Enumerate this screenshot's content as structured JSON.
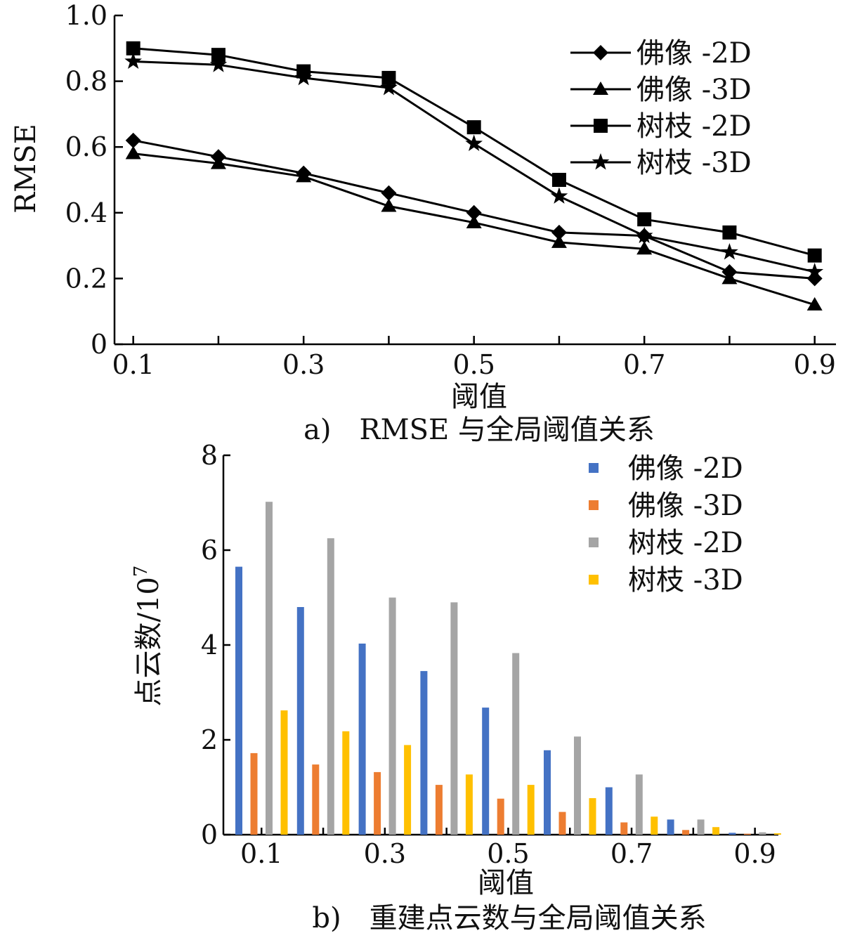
{
  "chart_data": [
    {
      "type": "line",
      "caption": "a)　RMSE 与全局阈值关系",
      "xlabel": "阈值",
      "ylabel": "RMSE",
      "x": [
        0.1,
        0.2,
        0.3,
        0.4,
        0.5,
        0.6,
        0.7,
        0.8,
        0.9
      ],
      "x_tick_labels": [
        "0.1",
        "0.3",
        "0.5",
        "0.7",
        "0.9"
      ],
      "y_tick_labels": [
        "0",
        "0.2",
        "0.4",
        "0.6",
        "0.8",
        "1.0"
      ],
      "xlim": [
        0.078,
        0.925
      ],
      "ylim": [
        0,
        1.0
      ],
      "legend_position": "top-right",
      "series": [
        {
          "name": "佛像 -2D",
          "marker": "diamond",
          "values": [
            0.62,
            0.57,
            0.52,
            0.46,
            0.4,
            0.34,
            0.33,
            0.22,
            0.2
          ]
        },
        {
          "name": "佛像 -3D",
          "marker": "triangle",
          "values": [
            0.58,
            0.55,
            0.51,
            0.42,
            0.37,
            0.31,
            0.29,
            0.2,
            0.12
          ]
        },
        {
          "name": "树枝 -2D",
          "marker": "square",
          "values": [
            0.9,
            0.88,
            0.83,
            0.81,
            0.66,
            0.5,
            0.38,
            0.34,
            0.27
          ]
        },
        {
          "name": "树枝 -3D",
          "marker": "star",
          "values": [
            0.86,
            0.85,
            0.81,
            0.78,
            0.61,
            0.45,
            0.33,
            0.28,
            0.22
          ]
        }
      ]
    },
    {
      "type": "bar",
      "caption": "b)　重建点云数与全局阈值关系",
      "xlabel": "阈值",
      "ylabel": "点云数/10",
      "ylabel_superscript": "7",
      "categories": [
        0.1,
        0.2,
        0.3,
        0.4,
        0.5,
        0.6,
        0.7,
        0.8,
        0.9
      ],
      "x_tick_labels": [
        "0.1",
        "0.3",
        "0.5",
        "0.7",
        "0.9"
      ],
      "y_tick_labels": [
        "0",
        "2",
        "4",
        "6",
        "8"
      ],
      "ylim": [
        0,
        8
      ],
      "legend_position": "top-right",
      "series": [
        {
          "name": "佛像 -2D",
          "color": "#4472c4",
          "values": [
            5.65,
            4.8,
            4.03,
            3.45,
            2.68,
            1.78,
            1.0,
            0.32,
            0.04
          ]
        },
        {
          "name": "佛像 -3D",
          "color": "#ed7d31",
          "values": [
            1.72,
            1.48,
            1.32,
            1.05,
            0.76,
            0.48,
            0.26,
            0.1,
            0.02
          ]
        },
        {
          "name": "树枝 -2D",
          "color": "#a5a5a5",
          "values": [
            7.02,
            6.25,
            5.0,
            4.9,
            3.83,
            2.07,
            1.27,
            0.32,
            0.05
          ]
        },
        {
          "name": "树枝 -3D",
          "color": "#ffc000",
          "values": [
            2.62,
            2.18,
            1.89,
            1.27,
            1.05,
            0.77,
            0.38,
            0.16,
            0.03
          ]
        }
      ]
    }
  ]
}
